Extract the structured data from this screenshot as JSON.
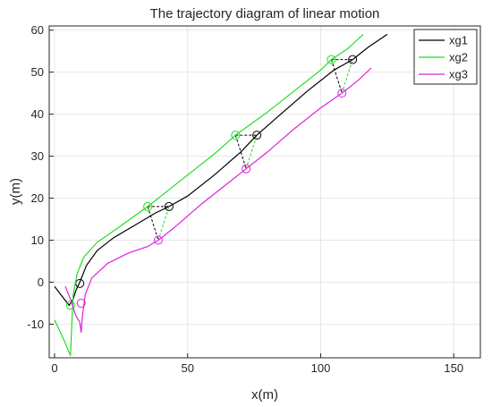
{
  "chart_data": {
    "type": "line",
    "title": "The trajectory diagram of linear motion",
    "xlabel": "x(m)",
    "ylabel": "y(m)",
    "xlim": [
      -2,
      160
    ],
    "ylim": [
      -18,
      61
    ],
    "xticks": [
      0,
      50,
      100,
      150
    ],
    "yticks": [
      -10,
      0,
      10,
      20,
      30,
      40,
      50,
      60
    ],
    "grid": true,
    "legend_position": "top-right",
    "series": [
      {
        "name": "xg1",
        "color": "#000000",
        "points": [
          [
            0,
            -1
          ],
          [
            3,
            -3.5
          ],
          [
            5.5,
            -5.5
          ],
          [
            7,
            -4
          ],
          [
            8,
            -2
          ],
          [
            9.5,
            0
          ],
          [
            12,
            4
          ],
          [
            16,
            7.5
          ],
          [
            22,
            10.5
          ],
          [
            30,
            13.5
          ],
          [
            38,
            16.5
          ],
          [
            43,
            18
          ],
          [
            50,
            20.5
          ],
          [
            60,
            25.5
          ],
          [
            70,
            31
          ],
          [
            76,
            35
          ],
          [
            85,
            40
          ],
          [
            95,
            45.5
          ],
          [
            105,
            50.5
          ],
          [
            112,
            53
          ],
          [
            118,
            56
          ],
          [
            125,
            59
          ]
        ],
        "markers": [
          [
            9.5,
            -0.3
          ],
          [
            43,
            18
          ],
          [
            76,
            35
          ],
          [
            112,
            53
          ]
        ]
      },
      {
        "name": "xg2",
        "color": "#22dd22",
        "points": [
          [
            0,
            -9
          ],
          [
            3,
            -13
          ],
          [
            6,
            -17.5
          ],
          [
            6.5,
            -10
          ],
          [
            7,
            -3
          ],
          [
            8.5,
            2
          ],
          [
            11,
            6
          ],
          [
            16,
            9.5
          ],
          [
            24,
            13
          ],
          [
            35,
            18
          ],
          [
            40,
            20.5
          ],
          [
            50,
            25.5
          ],
          [
            60,
            30.5
          ],
          [
            68,
            35
          ],
          [
            80,
            40.5
          ],
          [
            90,
            45.5
          ],
          [
            100,
            50.5
          ],
          [
            104,
            53
          ],
          [
            110,
            55.5
          ],
          [
            116,
            59
          ]
        ],
        "markers": [
          [
            6,
            -5.5
          ],
          [
            35,
            18
          ],
          [
            68,
            35
          ],
          [
            104,
            53
          ]
        ]
      },
      {
        "name": "xg3",
        "color": "#dd22dd",
        "points": [
          [
            4,
            -1
          ],
          [
            6,
            -4
          ],
          [
            8,
            -8
          ],
          [
            9.5,
            -9.5
          ],
          [
            10,
            -12
          ],
          [
            10.5,
            -8
          ],
          [
            11.5,
            -3
          ],
          [
            14,
            1
          ],
          [
            20,
            4.5
          ],
          [
            28,
            7
          ],
          [
            35,
            8.5
          ],
          [
            39,
            10
          ],
          [
            45,
            13
          ],
          [
            55,
            18.5
          ],
          [
            65,
            23.5
          ],
          [
            72,
            27
          ],
          [
            80,
            31
          ],
          [
            90,
            36.5
          ],
          [
            100,
            41.5
          ],
          [
            108,
            45
          ],
          [
            114,
            48
          ],
          [
            119,
            51
          ]
        ],
        "markers": [
          [
            10,
            -5
          ],
          [
            39,
            10
          ],
          [
            72,
            27
          ],
          [
            108,
            45
          ]
        ]
      }
    ],
    "connectors": [
      {
        "style": "black-dashed",
        "from": [
          35,
          18
        ],
        "to": [
          43,
          18
        ]
      },
      {
        "style": "black-dashed",
        "from": [
          35,
          18
        ],
        "to": [
          39,
          10
        ]
      },
      {
        "style": "green-dashed",
        "from": [
          39,
          10
        ],
        "to": [
          43,
          18
        ]
      },
      {
        "style": "black-dashed",
        "from": [
          68,
          35
        ],
        "to": [
          76,
          35
        ]
      },
      {
        "style": "black-dashed",
        "from": [
          68,
          35
        ],
        "to": [
          72,
          27
        ]
      },
      {
        "style": "green-dashed",
        "from": [
          72,
          27
        ],
        "to": [
          76,
          35
        ]
      },
      {
        "style": "black-dashed",
        "from": [
          104,
          53
        ],
        "to": [
          112,
          53
        ]
      },
      {
        "style": "black-dashed",
        "from": [
          104,
          53
        ],
        "to": [
          108,
          45
        ]
      },
      {
        "style": "green-dashed",
        "from": [
          108,
          45
        ],
        "to": [
          112,
          53
        ]
      }
    ]
  }
}
